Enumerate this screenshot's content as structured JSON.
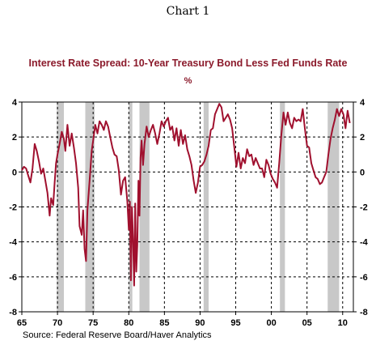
{
  "page": {
    "title": "Chart 1"
  },
  "chart_data": {
    "type": "line",
    "title": "Interest Rate Spread: 10-Year Treasury Bond Less Fed Funds Rate",
    "ylabel": "%",
    "source": "Source:  Federal Reserve Board/Haver Analytics",
    "xlim": [
      1965,
      2011.5
    ],
    "ylim": [
      -8,
      4
    ],
    "yticks": [
      4,
      2,
      0,
      -2,
      -4,
      -6,
      -8
    ],
    "xticks": [
      1965,
      1970,
      1975,
      1980,
      1985,
      1990,
      1995,
      2000,
      2005,
      2010
    ],
    "xtick_labels": [
      "65",
      "70",
      "75",
      "80",
      "85",
      "90",
      "95",
      "00",
      "05",
      "10"
    ],
    "grid": true,
    "colors": {
      "line": "#a0102e",
      "recession": "#c8c8c8",
      "title": "#8b1a2b"
    },
    "recessions": [
      [
        1969.9,
        1970.9
      ],
      [
        1973.9,
        1975.2
      ],
      [
        1980.0,
        1980.5
      ],
      [
        1981.5,
        1982.9
      ],
      [
        1990.5,
        1991.2
      ],
      [
        2001.2,
        2001.9
      ],
      [
        2007.9,
        2009.5
      ]
    ],
    "series": [
      {
        "x": [
          1965.0,
          1965.3,
          1965.6,
          1965.9,
          1966.2,
          1966.5,
          1966.8,
          1967.1,
          1967.4,
          1967.7,
          1968.0,
          1968.3,
          1968.6,
          1968.9,
          1969.1,
          1969.4,
          1969.6,
          1969.8,
          1970.0,
          1970.3,
          1970.6,
          1970.9,
          1971.1,
          1971.4,
          1971.7,
          1972.0,
          1972.3,
          1972.6,
          1972.9,
          1973.1,
          1973.4,
          1973.6,
          1973.8,
          1974.0,
          1974.2,
          1974.5,
          1974.8,
          1975.0,
          1975.3,
          1975.6,
          1975.9,
          1976.2,
          1976.5,
          1976.8,
          1977.1,
          1977.4,
          1977.7,
          1978.0,
          1978.3,
          1978.6,
          1978.9,
          1979.2,
          1979.5,
          1979.8,
          1980.0,
          1980.15,
          1980.3,
          1980.45,
          1980.6,
          1980.75,
          1980.9,
          1981.05,
          1981.2,
          1981.35,
          1981.5,
          1981.65,
          1981.8,
          1982.0,
          1982.2,
          1982.5,
          1982.8,
          1983.1,
          1983.4,
          1983.7,
          1984.0,
          1984.3,
          1984.6,
          1984.9,
          1985.2,
          1985.5,
          1985.8,
          1986.1,
          1986.4,
          1986.7,
          1987.0,
          1987.3,
          1987.6,
          1987.9,
          1988.2,
          1988.5,
          1988.8,
          1989.1,
          1989.4,
          1989.7,
          1990.0,
          1990.3,
          1990.6,
          1990.9,
          1991.2,
          1991.5,
          1991.8,
          1992.1,
          1992.4,
          1992.7,
          1993.0,
          1993.3,
          1993.6,
          1993.9,
          1994.2,
          1994.5,
          1994.8,
          1995.1,
          1995.4,
          1995.7,
          1996.0,
          1996.3,
          1996.6,
          1996.9,
          1997.2,
          1997.5,
          1997.8,
          1998.1,
          1998.4,
          1998.7,
          1999.0,
          1999.3,
          1999.6,
          1999.9,
          2000.2,
          2000.5,
          2000.8,
          2001.1,
          2001.4,
          2001.7,
          2002.0,
          2002.3,
          2002.6,
          2002.9,
          2003.2,
          2003.5,
          2003.8,
          2004.1,
          2004.4,
          2004.7,
          2005.0,
          2005.3,
          2005.6,
          2005.9,
          2006.2,
          2006.5,
          2006.8,
          2007.1,
          2007.4,
          2007.7,
          2008.0,
          2008.3,
          2008.6,
          2008.9,
          2009.2,
          2009.5,
          2009.8,
          2010.1,
          2010.4,
          2010.7,
          2011.0
        ],
        "y": [
          0.1,
          0.3,
          0.2,
          -0.2,
          -0.6,
          0.2,
          1.6,
          1.2,
          0.6,
          -0.1,
          0.2,
          -0.5,
          -1.2,
          -2.5,
          -1.5,
          -1.9,
          -0.6,
          0.5,
          1.0,
          1.6,
          2.3,
          1.9,
          1.2,
          2.7,
          1.5,
          2.2,
          1.4,
          0.5,
          -0.9,
          -3.1,
          -3.6,
          -2.2,
          -4.4,
          -5.1,
          -2.2,
          -0.5,
          1.2,
          1.8,
          2.7,
          2.2,
          2.9,
          2.7,
          2.4,
          2.9,
          2.6,
          2.0,
          1.4,
          1.0,
          0.9,
          0.1,
          -1.3,
          -0.5,
          -0.3,
          -1.7,
          -3.3,
          -1.7,
          -6.2,
          -2.0,
          -3.8,
          -6.5,
          -1.8,
          -5.7,
          -4.2,
          -0.5,
          -2.5,
          0.8,
          1.8,
          0.4,
          1.6,
          2.6,
          2.0,
          2.4,
          2.7,
          2.2,
          1.6,
          2.2,
          2.9,
          2.6,
          2.9,
          3.1,
          2.4,
          2.6,
          1.8,
          2.5,
          1.5,
          2.4,
          1.6,
          2.1,
          1.3,
          0.9,
          0.4,
          -0.5,
          -1.2,
          -0.6,
          0.3,
          0.4,
          0.6,
          1.0,
          1.5,
          2.4,
          2.5,
          3.3,
          3.6,
          3.9,
          3.7,
          2.9,
          3.1,
          3.3,
          3.0,
          2.5,
          1.4,
          0.3,
          1.1,
          0.2,
          0.8,
          0.5,
          1.3,
          0.9,
          1.0,
          0.4,
          0.8,
          0.5,
          0.2,
          0.2,
          -0.3,
          0.7,
          0.4,
          -0.1,
          -0.4,
          -0.6,
          -0.9,
          0.5,
          2.1,
          3.4,
          2.7,
          3.4,
          2.8,
          2.5,
          3.1,
          2.9,
          3.0,
          2.9,
          3.6,
          2.5,
          1.5,
          1.4,
          0.5,
          0.1,
          -0.3,
          -0.4,
          -0.7,
          -0.6,
          -0.3,
          0.0,
          1.0,
          1.9,
          2.5,
          3.0,
          3.6,
          3.2,
          3.6,
          3.3,
          2.5,
          3.5,
          2.8
        ]
      }
    ]
  }
}
